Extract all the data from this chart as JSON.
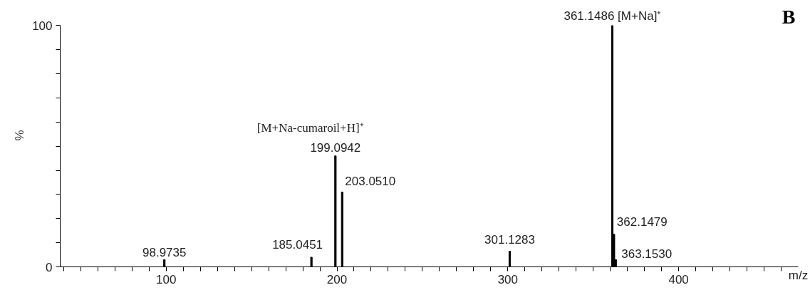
{
  "chart_data": {
    "type": "bar",
    "xlabel": "m/z",
    "ylabel": "%",
    "x": [
      98.9735,
      185.0451,
      199.0942,
      203.051,
      301.1283,
      361.1486,
      362.1479,
      363.153
    ],
    "values": [
      3,
      4,
      46,
      31,
      6.5,
      100,
      13.5,
      3
    ],
    "color": "#000000",
    "xlim": [
      38,
      470
    ],
    "xticks": [
      {
        "value": 40,
        "label": null
      },
      {
        "value": 50,
        "label": null
      },
      {
        "value": 60,
        "label": null
      },
      {
        "value": 70,
        "label": null
      },
      {
        "value": 80,
        "label": null
      },
      {
        "value": 90,
        "label": null
      },
      100,
      {
        "value": 110,
        "label": null
      },
      {
        "value": 120,
        "label": null
      },
      {
        "value": 130,
        "label": null
      },
      {
        "value": 140,
        "label": null
      },
      {
        "value": 150,
        "label": null
      },
      {
        "value": 160,
        "label": null
      },
      {
        "value": 170,
        "label": null
      },
      {
        "value": 180,
        "label": null
      },
      {
        "value": 190,
        "label": null
      },
      200,
      {
        "value": 210,
        "label": null
      },
      {
        "value": 220,
        "label": null
      },
      {
        "value": 230,
        "label": null
      },
      {
        "value": 240,
        "label": null
      },
      {
        "value": 250,
        "label": null
      },
      {
        "value": 260,
        "label": null
      },
      {
        "value": 270,
        "label": null
      },
      {
        "value": 280,
        "label": null
      },
      {
        "value": 290,
        "label": null
      },
      300,
      {
        "value": 310,
        "label": null
      },
      {
        "value": 320,
        "label": null
      },
      {
        "value": 330,
        "label": null
      },
      {
        "value": 340,
        "label": null
      },
      {
        "value": 350,
        "label": null
      },
      {
        "value": 360,
        "label": null
      },
      {
        "value": 370,
        "label": null
      },
      {
        "value": 380,
        "label": null
      },
      {
        "value": 390,
        "label": null
      },
      400,
      {
        "value": 410,
        "label": null
      },
      {
        "value": 420,
        "label": null
      },
      {
        "value": 430,
        "label": null
      },
      {
        "value": 440,
        "label": null
      },
      {
        "value": 450,
        "label": null
      },
      {
        "value": 460,
        "label": null
      }
    ],
    "ylim": [
      0,
      100
    ],
    "yticks": [
      0,
      {
        "value": 10,
        "label": null
      },
      {
        "value": 20,
        "label": null
      },
      {
        "value": 30,
        "label": null
      },
      {
        "value": 40,
        "label": null
      },
      {
        "value": 50,
        "label": null
      },
      {
        "value": 60,
        "label": null
      },
      {
        "value": 70,
        "label": null
      },
      {
        "value": 80,
        "label": null
      },
      {
        "value": 90,
        "label": null
      },
      100
    ],
    "grid": false,
    "annotations": [
      {
        "text": "361.1486 [M+Na]⁺",
        "x": 361.1486,
        "y": 100
      },
      {
        "text": "[M+Na-cumaroil+H]⁺",
        "x": 199.0942,
        "y": 46
      },
      {
        "text": "199.0942",
        "x": 199.0942,
        "y": 46
      },
      {
        "text": "203.0510",
        "x": 203.051,
        "y": 31
      },
      {
        "text": "185.0451",
        "x": 185.0451,
        "y": 4
      },
      {
        "text": "98.9735",
        "x": 98.9735,
        "y": 3
      },
      {
        "text": "301.1283",
        "x": 301.1283,
        "y": 6.5
      },
      {
        "text": "362.1479",
        "x": 362.1479,
        "y": 13.5
      },
      {
        "text": "363.1530",
        "x": 363.153,
        "y": 3
      },
      "B"
    ]
  }
}
